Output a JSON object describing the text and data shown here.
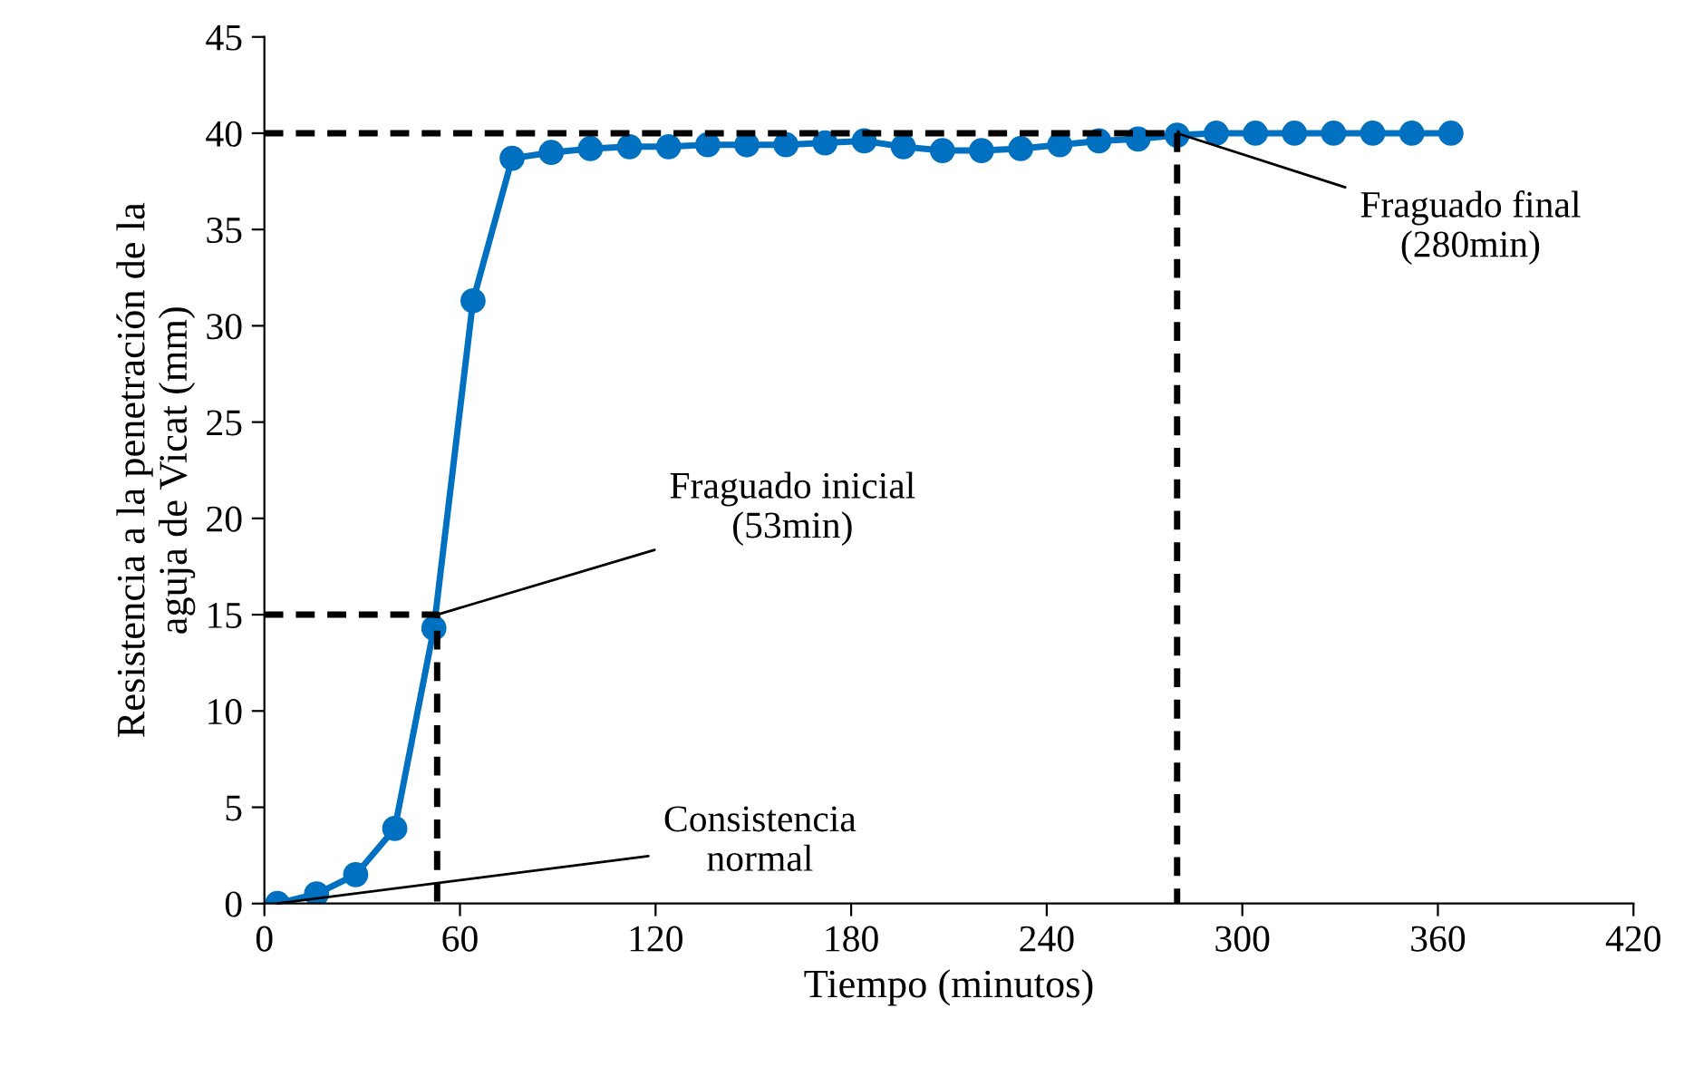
{
  "chart_data": {
    "type": "line",
    "xlabel": "Tiempo (minutos)",
    "ylabel": "Resistencia a la penetración de la\naguja de Vicat (mm)",
    "xlim": [
      0,
      420
    ],
    "xticks": [
      0,
      60,
      120,
      180,
      240,
      300,
      360,
      420
    ],
    "ylim": [
      0,
      45
    ],
    "yticks": [
      0,
      5,
      10,
      15,
      20,
      25,
      30,
      35,
      40,
      45
    ],
    "grid": false,
    "legend": false,
    "series": [
      {
        "color": "#0070c0",
        "marker": "circle",
        "line_style": "solid",
        "x": [
          4,
          16,
          28,
          40,
          52,
          64,
          76,
          88,
          100,
          112,
          124,
          136,
          148,
          160,
          172,
          184,
          196,
          208,
          220,
          232,
          244,
          256,
          268,
          280,
          292,
          304,
          316,
          328,
          340,
          352,
          364
        ],
        "values": [
          0,
          0.5,
          1.5,
          3.9,
          14.3,
          31.3,
          38.7,
          39,
          39.2,
          39.3,
          39.3,
          39.4,
          39.4,
          39.4,
          39.5,
          39.6,
          39.3,
          39.1,
          39.1,
          39.2,
          39.4,
          39.6,
          39.7,
          39.9,
          40,
          40,
          40,
          40,
          40,
          40,
          40
        ]
      },
      {
        "color": "#000000",
        "marker": "none",
        "line_style": "dashed",
        "x": [
          0,
          53,
          53
        ],
        "values": [
          15,
          15,
          0
        ]
      },
      {
        "color": "#000000",
        "marker": "none",
        "line_style": "dashed",
        "x": [
          0,
          280,
          280
        ],
        "values": [
          40,
          40,
          0
        ]
      }
    ],
    "annotations": [
      {
        "text": "Consistencia\nnormal",
        "x": 4,
        "y": 0
      },
      {
        "text": "Fraguado inicial\n(53min)",
        "x": 53,
        "y": 15
      },
      {
        "text": "Fraguado final\n(280min)",
        "x": 280,
        "y": 40
      }
    ]
  }
}
